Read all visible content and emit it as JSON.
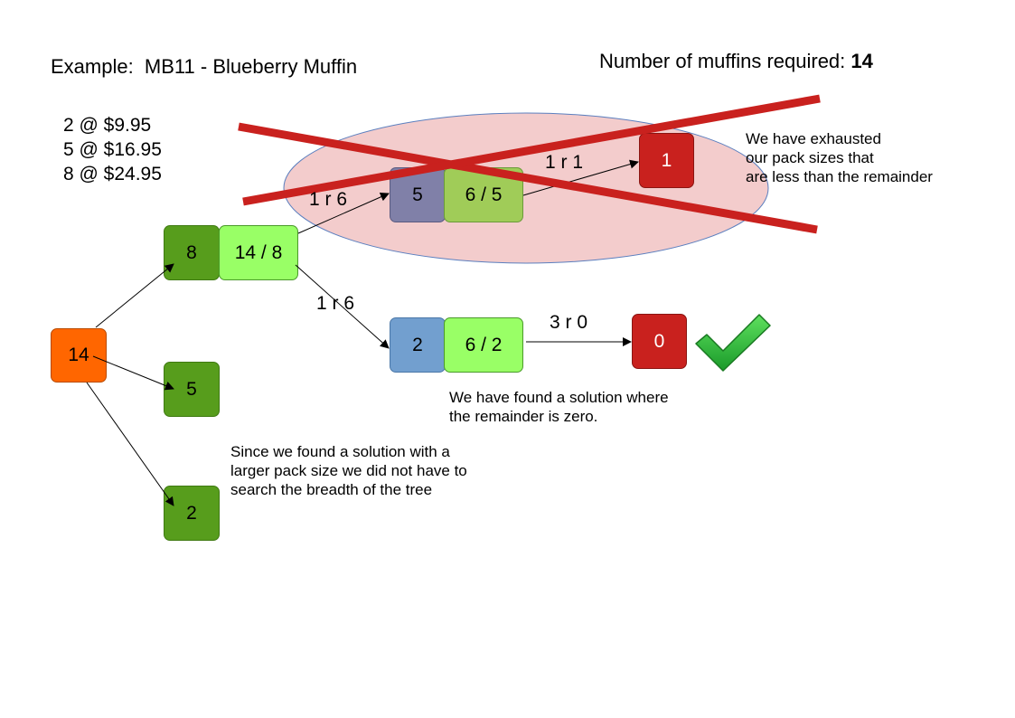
{
  "header": {
    "title": "Example:  MB11 - Blueberry Muffin",
    "required_label": "Number of muffins required: ",
    "required_value": "14"
  },
  "packs": [
    "2 @ $9.95",
    "5 @ $16.95",
    "8 @ $24.95"
  ],
  "nodes": {
    "root": "14",
    "child_8": "8",
    "child_8_div": "14 / 8",
    "child_5": "5",
    "child_2": "2",
    "sub_5": "5",
    "sub_5_div": "6 / 5",
    "sub_2": "2",
    "sub_2_div": "6 / 2",
    "result_1": "1",
    "result_0": "0"
  },
  "edges": {
    "to_sub5": "1 r 6",
    "to_result1": "1 r 1",
    "to_sub2": "1 r 6",
    "to_result0": "3 r 0"
  },
  "notes": {
    "exhausted": [
      "We have exhausted",
      "our pack sizes that",
      "are less than the remainder"
    ],
    "solution": [
      "We have found a solution where",
      "the remainder is zero."
    ],
    "breadth": [
      "Since we found a solution with a",
      "larger pack size we did not have to",
      "search the breadth of the tree"
    ]
  },
  "icons": {
    "cross": "cross-out-icon",
    "check": "checkmark-icon"
  },
  "colors": {
    "root": "#ff6600",
    "dark_green": "#579d1c",
    "light_green": "#99ff66",
    "olive_green": "#a0cc58",
    "purple_gray": "#8080a8",
    "blue": "#729fcf",
    "red": "#c9211e",
    "ellipse": "#f3cccc",
    "cross_red": "#c9211e",
    "check_green": "#2eb82e"
  }
}
